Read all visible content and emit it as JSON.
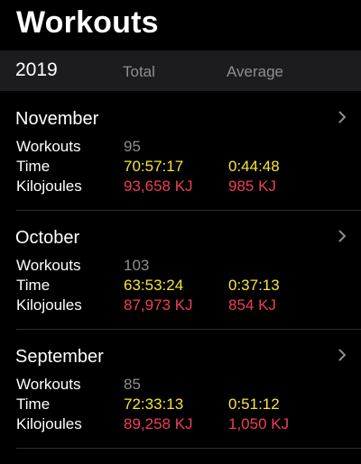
{
  "header": {
    "title": "Workouts"
  },
  "summary": {
    "year": "2019",
    "total_label": "Total",
    "average_label": "Average"
  },
  "months": [
    {
      "name": "November",
      "rows": [
        {
          "label": "Workouts",
          "total": "95",
          "average": ""
        },
        {
          "label": "Time",
          "total": "70:57:17",
          "average": "0:44:48"
        },
        {
          "label": "Kilojoules",
          "total": "93,658 KJ",
          "average": "985 KJ"
        }
      ]
    },
    {
      "name": "October",
      "rows": [
        {
          "label": "Workouts",
          "total": "103",
          "average": ""
        },
        {
          "label": "Time",
          "total": "63:53:24",
          "average": "0:37:13"
        },
        {
          "label": "Kilojoules",
          "total": "87,973 KJ",
          "average": "854 KJ"
        }
      ]
    },
    {
      "name": "September",
      "rows": [
        {
          "label": "Workouts",
          "total": "85",
          "average": ""
        },
        {
          "label": "Time",
          "total": "72:33:13",
          "average": "0:51:12"
        },
        {
          "label": "Kilojoules",
          "total": "89,258 KJ",
          "average": "1,050 KJ"
        }
      ]
    }
  ],
  "colors": {
    "background": "#000000",
    "year_bar": "#1c1c1e",
    "label_gray": "#8e8e93",
    "time_yellow": "#f7e53b",
    "energy_red": "#ef3e5a"
  },
  "icons": {
    "disclosure": "chevron-right-icon"
  }
}
